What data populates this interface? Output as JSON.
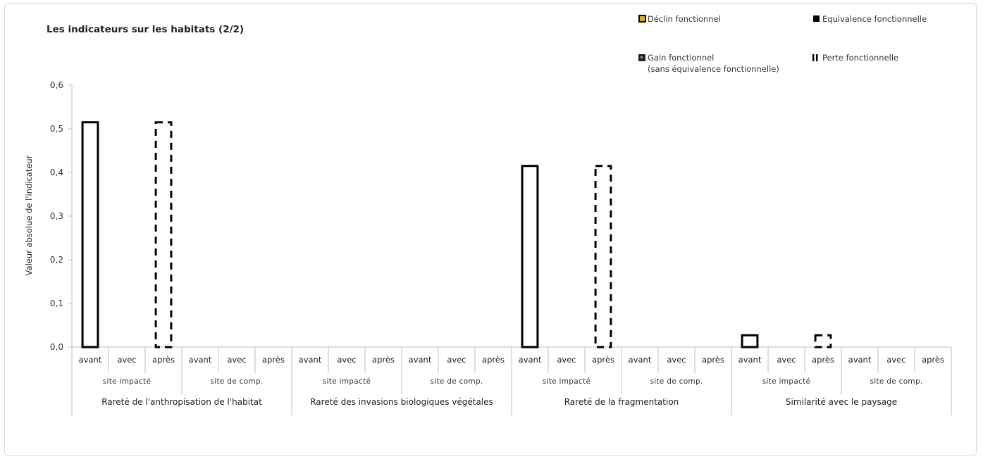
{
  "chart_data": {
    "type": "bar",
    "title": "Les indicateurs sur les habitats (2/2)",
    "ylabel": "Valeur absolue de l'indicateur",
    "ylim": [
      0,
      0.6
    ],
    "yticks": [
      "0,0",
      "0,1",
      "0,2",
      "0,3",
      "0,4",
      "0,5",
      "0,6"
    ],
    "grid": false,
    "legend_position": "top-right",
    "legend": [
      {
        "name": "Déclin fonctionnel",
        "lines": [
          "Déclin fonctionnel"
        ],
        "swatch": "declin"
      },
      {
        "name": "Equivalence fonctionnelle",
        "lines": [
          "Equivalence fonctionnelle"
        ],
        "swatch": "equivalence"
      },
      {
        "name": "Gain fonctionnel (sans équivalence fonctionnelle)",
        "lines": [
          "Gain fonctionnel",
          "(sans équivalence fonctionnelle)"
        ],
        "swatch": "gain"
      },
      {
        "name": "Perte fonctionnelle",
        "lines": [
          "Perte fonctionnelle"
        ],
        "swatch": "perte"
      }
    ],
    "indicators": [
      "Rareté de l'anthropisation de l'habitat",
      "Rareté des invasions biologiques végétales",
      "Rareté de la fragmentation",
      "Similarité avec le paysage"
    ],
    "sites": [
      "site impacté",
      "site de comp."
    ],
    "phases": [
      "avant",
      "avec",
      "après"
    ],
    "values": [
      [
        [
          0.515,
          0,
          0.515
        ],
        [
          0,
          0,
          0
        ]
      ],
      [
        [
          0,
          0,
          0
        ],
        [
          0,
          0,
          0
        ]
      ],
      [
        [
          0.415,
          0,
          0.415
        ],
        [
          0,
          0,
          0
        ]
      ],
      [
        [
          0.027,
          0,
          0.027
        ],
        [
          0,
          0,
          0
        ]
      ]
    ],
    "styles": [
      "solid",
      "none",
      "dashed"
    ]
  }
}
